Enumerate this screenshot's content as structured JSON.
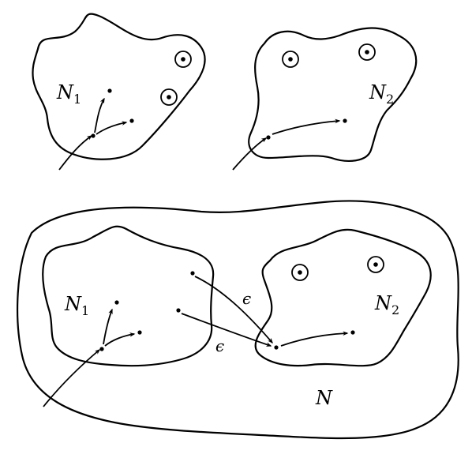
{
  "labels": {
    "top_n1": {
      "main": "N",
      "sub": "1"
    },
    "top_n2": {
      "main": "N",
      "sub": "2"
    },
    "bottom_n1": {
      "main": "N",
      "sub": "1"
    },
    "bottom_n2": {
      "main": "N",
      "sub": "2"
    },
    "bottom_n": {
      "main": "N"
    },
    "epsilon_upper": "ϵ",
    "epsilon_lower": "ϵ"
  }
}
